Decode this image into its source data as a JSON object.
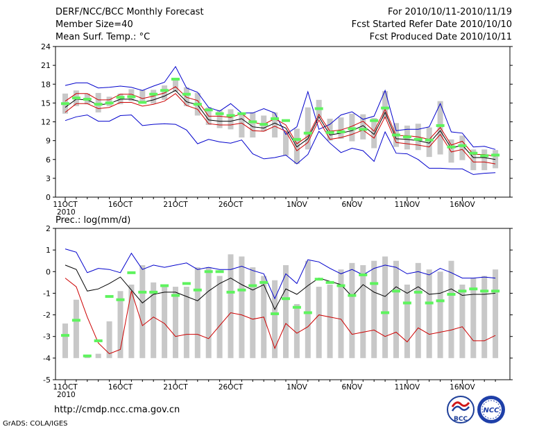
{
  "header": {
    "title": "DERF/NCC/BCC Monthly Forecast",
    "member": "Member Size=40",
    "variable": "Mean Surf. Temp.: °C",
    "period": "For 2010/10/11-2010/11/19",
    "started": "Fcst Started Refer Date 2010/10/10",
    "produced": "Fcst Produced Date 2010/10/11"
  },
  "footer": {
    "prec_label": "Prec.: log(mm/d)",
    "url": "http://cmdp.ncc.cma.gov.cn",
    "grads": "GrADS: COLA/IGES",
    "logo_bcc": "BCC",
    "logo_ncc": "NCC"
  },
  "chart_data": [
    {
      "type": "line",
      "title": "Mean Surf. Temp.: °C",
      "ylim": [
        0,
        24
      ],
      "yticks": [
        0,
        3,
        6,
        9,
        12,
        15,
        18,
        21,
        24
      ],
      "xtick_labels": [
        {
          "day": 0,
          "label": "11OCT"
        },
        {
          "day": 5,
          "label": "16OCT"
        },
        {
          "day": 10,
          "label": "21OCT"
        },
        {
          "day": 15,
          "label": "26OCT"
        },
        {
          "day": 21,
          "label": "1NOV"
        },
        {
          "day": 26,
          "label": "6NOV"
        },
        {
          "day": 31,
          "label": "11NOV"
        },
        {
          "day": 36,
          "label": "16NOV"
        }
      ],
      "year_label": "2010",
      "days": 40,
      "bars_low": [
        13.3,
        14.5,
        14.8,
        13.5,
        14.5,
        14.8,
        15.3,
        15.2,
        14.9,
        15.5,
        16.8,
        14.5,
        13.0,
        11.5,
        11.0,
        10.8,
        9.5,
        9.5,
        10.5,
        9.5,
        6.6,
        5.3,
        7.6,
        12.7,
        9.0,
        9.3,
        8.9,
        9.2,
        7.8,
        12.5,
        8.0,
        7.6,
        7.5,
        6.4,
        6.8,
        5.5,
        5.9,
        4.3,
        4.3,
        4.6
      ],
      "bars_high": [
        16.5,
        17.0,
        16.5,
        16.6,
        16.0,
        16.5,
        17.2,
        17.1,
        17.1,
        17.8,
        18.8,
        17.5,
        16.6,
        14.3,
        13.9,
        14.0,
        13.5,
        13.5,
        13.0,
        13.5,
        10.5,
        10.9,
        14.3,
        15.5,
        12.5,
        12.7,
        13.3,
        13.2,
        12.6,
        16.9,
        11.8,
        11.4,
        11.7,
        11.1,
        15.3,
        9.2,
        9.8,
        7.6,
        7.6,
        7.5
      ],
      "series": [
        {
          "name": "control",
          "color": "#5ef35e",
          "style": "marker",
          "values": [
            14.9,
            15.8,
            15.6,
            14.8,
            15.0,
            15.9,
            16.0,
            15.1,
            16.4,
            17.0,
            18.8,
            16.4,
            14.8,
            13.9,
            13.3,
            13.0,
            13.3,
            12.0,
            11.6,
            12.5,
            12.2,
            9.2,
            10.2,
            14.1,
            10.3,
            10.4,
            10.9,
            10.8,
            12.2,
            14.2,
            9.9,
            9.6,
            9.2,
            9.1,
            11.4,
            8.0,
            8.2,
            7.0,
            6.6,
            6.7
          ]
        },
        {
          "name": "upper",
          "color": "#0000cc",
          "style": "line",
          "values": [
            17.8,
            18.2,
            18.2,
            17.4,
            17.5,
            17.7,
            17.5,
            17.0,
            17.7,
            18.3,
            20.8,
            17.4,
            16.7,
            14.3,
            13.7,
            14.9,
            13.4,
            13.4,
            14.1,
            13.4,
            10.0,
            11.2,
            16.8,
            10.8,
            11.6,
            13.1,
            13.6,
            12.4,
            12.9,
            17.0,
            10.6,
            10.8,
            10.8,
            11.2,
            14.9,
            10.4,
            10.2,
            8.0,
            8.1,
            7.6
          ]
        },
        {
          "name": "ens-high",
          "color": "#cc0000",
          "style": "line",
          "values": [
            15.3,
            16.5,
            16.5,
            15.5,
            15.5,
            16.4,
            16.4,
            15.7,
            16.1,
            16.6,
            17.6,
            15.9,
            15.4,
            12.9,
            12.9,
            12.7,
            13.3,
            11.9,
            11.6,
            12.5,
            11.5,
            8.5,
            9.7,
            13.2,
            10.5,
            10.7,
            11.3,
            12.1,
            10.5,
            14.0,
            9.8,
            9.8,
            9.6,
            9.2,
            11.1,
            8.3,
            8.9,
            6.8,
            6.8,
            6.5
          ]
        },
        {
          "name": "ens-mean",
          "color": "#000000",
          "style": "line",
          "values": [
            14.3,
            15.6,
            15.5,
            14.7,
            14.9,
            15.6,
            15.6,
            15.1,
            15.5,
            16.1,
            17.0,
            15.2,
            14.7,
            12.3,
            12.1,
            12.1,
            12.5,
            11.2,
            11.0,
            11.8,
            11.0,
            8.0,
            9.3,
            12.8,
            9.9,
            10.2,
            10.6,
            11.4,
            10.0,
            13.5,
            9.3,
            9.2,
            9.0,
            8.6,
            10.6,
            7.8,
            8.3,
            6.3,
            6.3,
            6.0
          ]
        },
        {
          "name": "ens-low",
          "color": "#cc0000",
          "style": "line",
          "values": [
            13.5,
            14.9,
            14.9,
            14.1,
            14.3,
            15.1,
            15.1,
            14.5,
            14.8,
            15.3,
            16.5,
            14.6,
            14.0,
            11.7,
            11.5,
            11.5,
            11.8,
            10.6,
            10.5,
            11.3,
            10.5,
            7.4,
            8.7,
            12.3,
            9.2,
            9.5,
            10.0,
            10.7,
            9.4,
            12.8,
            8.7,
            8.5,
            8.3,
            8.0,
            10.0,
            7.2,
            7.6,
            5.6,
            5.6,
            5.3
          ]
        },
        {
          "name": "lower",
          "color": "#0000cc",
          "style": "line",
          "values": [
            12.2,
            12.8,
            13.1,
            12.1,
            12.1,
            13.0,
            13.1,
            11.4,
            11.6,
            11.7,
            11.6,
            10.7,
            8.5,
            9.2,
            8.8,
            8.6,
            9.1,
            6.9,
            6.1,
            6.3,
            6.7,
            5.3,
            6.8,
            10.5,
            8.6,
            7.1,
            7.8,
            7.4,
            5.7,
            10.4,
            7.0,
            6.9,
            6.0,
            4.6,
            4.6,
            4.5,
            4.5,
            3.6,
            3.8,
            3.9
          ]
        }
      ]
    },
    {
      "type": "line",
      "title": "Prec.: log(mm/d)",
      "ylim": [
        -5,
        2
      ],
      "yticks": [
        -5,
        -4,
        -3,
        -2,
        -1,
        0,
        1,
        2
      ],
      "xtick_labels": [
        {
          "day": 0,
          "label": "11OCT"
        },
        {
          "day": 5,
          "label": "16OCT"
        },
        {
          "day": 10,
          "label": "21OCT"
        },
        {
          "day": 15,
          "label": "26OCT"
        },
        {
          "day": 21,
          "label": "1NOV"
        },
        {
          "day": 26,
          "label": "6NOV"
        },
        {
          "day": 31,
          "label": "11NOV"
        },
        {
          "day": 36,
          "label": "16NOV"
        }
      ],
      "year_label": "2010",
      "days": 40,
      "bar_base": -4,
      "bars_high": [
        -2.4,
        -1.3,
        -3.9,
        -3.8,
        -2.3,
        -0.9,
        -0.6,
        0.3,
        -0.5,
        -0.7,
        -0.7,
        -0.7,
        0.2,
        0.2,
        -0.2,
        0.8,
        0.7,
        0.2,
        -0.2,
        -0.4,
        0.3,
        -1.5,
        0.5,
        -0.7,
        -0.6,
        0.1,
        0.4,
        0.3,
        0.5,
        0.7,
        0.5,
        -0.6,
        0.4,
        0.1,
        0.0,
        0.5,
        -0.6,
        -0.3,
        -0.2,
        0.1
      ],
      "series": [
        {
          "name": "control",
          "color": "#5ef35e",
          "style": "marker",
          "values": [
            -2.95,
            -2.25,
            -3.9,
            -3.2,
            -1.15,
            -1.3,
            -0.05,
            -0.95,
            -0.95,
            -0.65,
            -1.1,
            -0.55,
            -0.85,
            0.0,
            0.0,
            -0.95,
            -0.85,
            -0.65,
            -0.5,
            -1.95,
            -1.25,
            -1.65,
            -1.9,
            -0.35,
            -0.5,
            -0.65,
            -1.1,
            -0.15,
            -0.55,
            -1.9,
            -0.9,
            -1.45,
            -0.95,
            -1.45,
            -1.35,
            -1.05,
            -0.9,
            -0.8,
            -0.9,
            -0.9
          ]
        },
        {
          "name": "upper",
          "color": "#0000cc",
          "style": "line",
          "values": [
            1.05,
            0.9,
            -0.05,
            0.15,
            0.1,
            -0.05,
            0.85,
            0.1,
            0.3,
            0.2,
            0.3,
            0.4,
            0.1,
            0.2,
            0.1,
            0.1,
            0.25,
            0.05,
            -0.1,
            -1.25,
            -0.1,
            -0.55,
            0.55,
            0.45,
            0.15,
            -0.1,
            0.1,
            -0.15,
            0.15,
            0.3,
            0.2,
            -0.1,
            0.0,
            -0.15,
            0.15,
            -0.05,
            -0.3,
            -0.3,
            -0.25,
            -0.3
          ]
        },
        {
          "name": "ens-mean",
          "color": "#000000",
          "style": "line",
          "values": [
            0.3,
            0.1,
            -0.9,
            -0.8,
            -0.55,
            -0.25,
            -0.85,
            -1.45,
            -1.05,
            -0.95,
            -0.95,
            -1.15,
            -1.35,
            -0.9,
            -0.55,
            -0.3,
            -0.6,
            -0.85,
            -0.6,
            -1.75,
            -0.8,
            -1.05,
            -0.65,
            -0.3,
            -0.45,
            -0.6,
            -1.15,
            -0.6,
            -0.95,
            -1.15,
            -0.7,
            -1.0,
            -0.7,
            -1.05,
            -1.0,
            -0.8,
            -1.1,
            -1.05,
            -1.05,
            -1.0
          ]
        },
        {
          "name": "lower",
          "color": "#cc0000",
          "style": "line",
          "values": [
            -0.3,
            -0.7,
            -2.1,
            -3.3,
            -3.8,
            -3.6,
            -0.9,
            -2.5,
            -2.1,
            -2.4,
            -3.0,
            -2.9,
            -2.9,
            -3.1,
            -2.5,
            -1.9,
            -2.0,
            -2.2,
            -2.1,
            -3.55,
            -2.4,
            -2.85,
            -2.55,
            -2.0,
            -2.1,
            -2.2,
            -2.9,
            -2.8,
            -2.7,
            -3.0,
            -2.8,
            -3.25,
            -2.6,
            -2.9,
            -2.8,
            -2.7,
            -2.55,
            -3.2,
            -3.2,
            -2.95
          ]
        }
      ]
    }
  ]
}
